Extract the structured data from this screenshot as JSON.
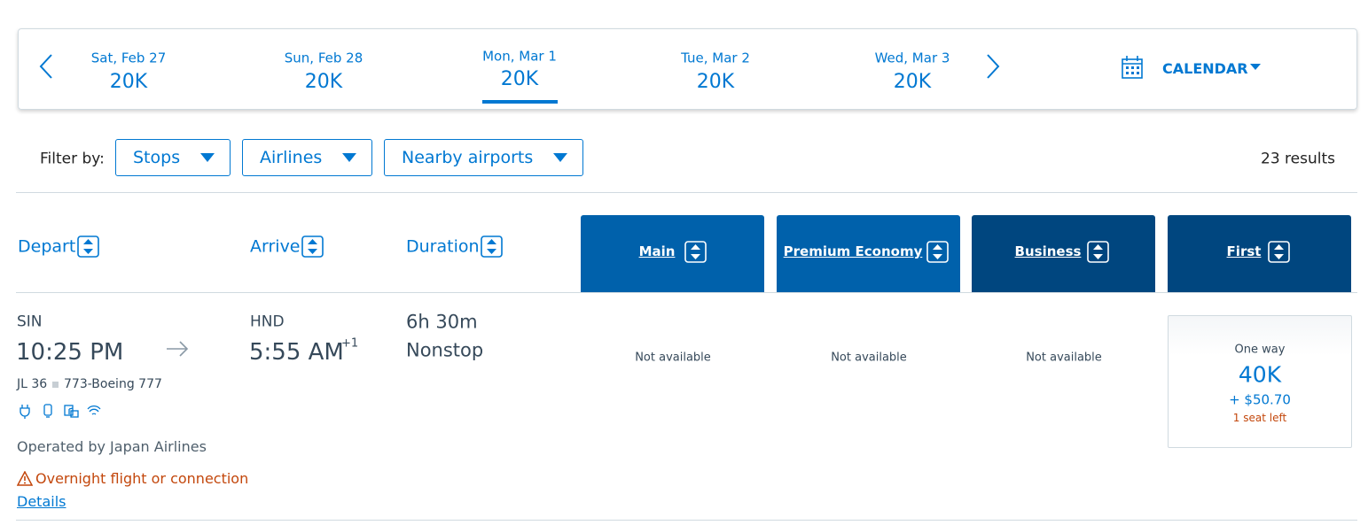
{
  "date_bar": {
    "days": [
      {
        "label": "Sat, Feb 27",
        "price": "20K"
      },
      {
        "label": "Sun, Feb 28",
        "price": "20K"
      },
      {
        "label": "Mon, Mar 1",
        "price": "20K"
      },
      {
        "label": "Tue, Mar 2",
        "price": "20K"
      },
      {
        "label": "Wed, Mar 3",
        "price": "20K"
      }
    ],
    "calendar": "CALENDAR"
  },
  "filters": {
    "label": "Filter by:",
    "options": [
      "Stops",
      "Airlines",
      "Nearby airports"
    ],
    "results": "23 results"
  },
  "columns": {
    "depart": "Depart",
    "arrive": "Arrive",
    "duration": "Duration",
    "cabins": [
      "Main",
      "Premium Economy",
      "Business",
      "First"
    ]
  },
  "flight": {
    "origin": "SIN",
    "depart_time": "10:25 PM",
    "destination": "HND",
    "arrive_time": "5:55 AM",
    "day_offset": "+1",
    "duration": "6h 30m",
    "stops": "Nonstop",
    "flight_number": "JL 36",
    "aircraft": "773-Boeing 777",
    "operator": "Operated by Japan Airlines",
    "warning": "Overnight flight or connection",
    "details": "Details",
    "fares": [
      "Not available",
      "Not available",
      "Not available"
    ],
    "first_fare": {
      "trip": "One way",
      "miles": "40K",
      "taxes": "+ $50.70",
      "seats": "1 seat left"
    }
  }
}
